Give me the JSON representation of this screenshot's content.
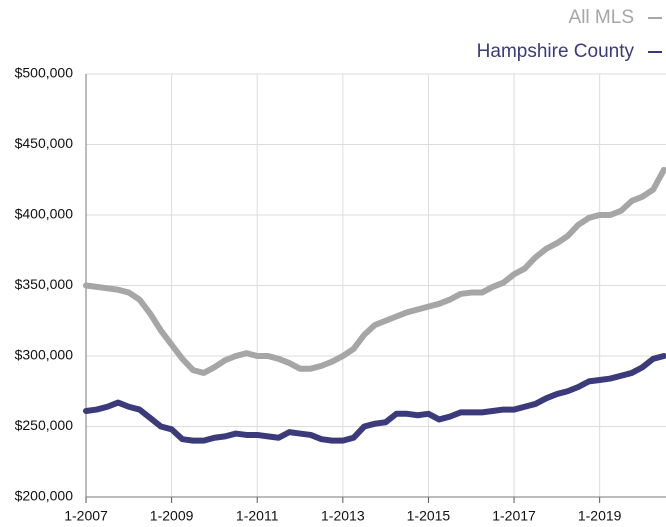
{
  "chart_data": {
    "type": "line",
    "x": [
      2007,
      2007.25,
      2007.5,
      2007.75,
      2008,
      2008.25,
      2008.5,
      2008.75,
      2009,
      2009.25,
      2009.5,
      2009.75,
      2010,
      2010.25,
      2010.5,
      2010.75,
      2011,
      2011.25,
      2011.5,
      2011.75,
      2012,
      2012.25,
      2012.5,
      2012.75,
      2013,
      2013.25,
      2013.5,
      2013.75,
      2014,
      2014.25,
      2014.5,
      2014.75,
      2015,
      2015.25,
      2015.5,
      2015.75,
      2016,
      2016.25,
      2016.5,
      2016.75,
      2017,
      2017.25,
      2017.5,
      2017.75,
      2018,
      2018.25,
      2018.5,
      2018.75,
      2019,
      2019.25,
      2019.5,
      2019.75,
      2020,
      2020.25,
      2020.5
    ],
    "series": [
      {
        "name": "All MLS",
        "color": "#a6a6a6",
        "values": [
          350000,
          349000,
          348000,
          347000,
          345000,
          340000,
          330000,
          318000,
          308000,
          298000,
          290000,
          288000,
          292000,
          297000,
          300000,
          302000,
          300000,
          300000,
          298000,
          295000,
          291000,
          291000,
          293000,
          296000,
          300000,
          305000,
          315000,
          322000,
          325000,
          328000,
          331000,
          333000,
          335000,
          337000,
          340000,
          344000,
          345000,
          345000,
          349000,
          352000,
          358000,
          362000,
          370000,
          376000,
          380000,
          385000,
          393000,
          398000,
          400000,
          400000,
          403000,
          410000,
          413000,
          418000,
          432000
        ]
      },
      {
        "name": "Hampshire County",
        "color": "#3b3b7c",
        "values": [
          261000,
          262000,
          264000,
          267000,
          264000,
          262000,
          256000,
          250000,
          248000,
          241000,
          240000,
          240000,
          242000,
          243000,
          245000,
          244000,
          244000,
          243000,
          242000,
          246000,
          245000,
          244000,
          241000,
          240000,
          240000,
          242000,
          250000,
          252000,
          253000,
          259000,
          259000,
          258000,
          259000,
          255000,
          257000,
          260000,
          260000,
          260000,
          261000,
          262000,
          262000,
          264000,
          266000,
          270000,
          273000,
          275000,
          278000,
          282000,
          283000,
          284000,
          286000,
          288000,
          292000,
          298000,
          300000
        ]
      }
    ],
    "xlim": [
      2007,
      2020.55
    ],
    "xticks": [
      {
        "value": 2007,
        "label": "1-2007"
      },
      {
        "value": 2009,
        "label": "1-2009"
      },
      {
        "value": 2011,
        "label": "1-2011"
      },
      {
        "value": 2013,
        "label": "1-2013"
      },
      {
        "value": 2015,
        "label": "1-2015"
      },
      {
        "value": 2017,
        "label": "1-2017"
      },
      {
        "value": 2019,
        "label": "1-2019"
      }
    ],
    "ylim": [
      200000,
      500000
    ],
    "yticks": [
      {
        "value": 200000,
        "label": "$200,000"
      },
      {
        "value": 250000,
        "label": "$250,000"
      },
      {
        "value": 300000,
        "label": "$300,000"
      },
      {
        "value": 350000,
        "label": "$350,000"
      },
      {
        "value": 400000,
        "label": "$400,000"
      },
      {
        "value": 450000,
        "label": "$450,000"
      },
      {
        "value": 500000,
        "label": "$500,000"
      }
    ],
    "grid": true,
    "legend": "top-right"
  }
}
